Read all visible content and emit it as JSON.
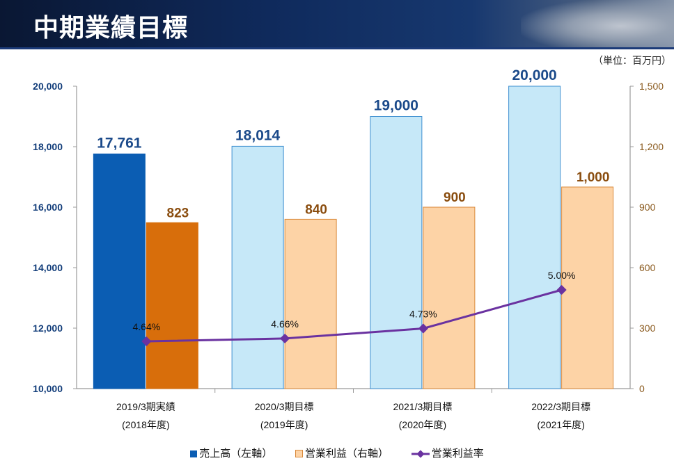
{
  "header": {
    "title": "中期業績目標"
  },
  "unit_label": "（単位：百万円）",
  "legend": {
    "sales": "売上高（左軸）",
    "profit": "営業利益（右軸）",
    "margin": "営業利益率"
  },
  "colors": {
    "sales_actual": "#0b5db3",
    "sales_target": "#c6e8f8",
    "sales_target_stroke": "#3e8fd0",
    "profit_actual": "#d86e0b",
    "profit_target": "#fdd3a6",
    "profit_target_stroke": "#d98a3c",
    "margin_line": "#6a32a0",
    "left_axis_text": "#123d7a",
    "right_axis_text": "#8a5a1e",
    "sales_label": "#1b4a8a",
    "profit_label": "#8a4d0f"
  },
  "chart_data": {
    "type": "bar",
    "categories": [
      [
        "2019/3期実績",
        "(2018年度)"
      ],
      [
        "2020/3期目標",
        "(2019年度)"
      ],
      [
        "2021/3期目標",
        "(2020年度)"
      ],
      [
        "2022/3期目標",
        "(2021年度)"
      ]
    ],
    "left_axis": {
      "ticks": [
        "10,000",
        "12,000",
        "14,000",
        "16,000",
        "18,000",
        "20,000"
      ],
      "ylim": [
        10000,
        20000
      ]
    },
    "right_axis": {
      "ticks": [
        "0",
        "300",
        "600",
        "900",
        "1,200",
        "1,500"
      ],
      "ylim": [
        0,
        1500
      ]
    },
    "series": [
      {
        "name": "売上高（左軸）",
        "axis": "left",
        "values": [
          17761,
          18014,
          19000,
          20000
        ],
        "labels": [
          "17,761",
          "18,014",
          "19,000",
          "20,000"
        ]
      },
      {
        "name": "営業利益（右軸）",
        "axis": "right",
        "values": [
          823,
          840,
          900,
          1000
        ],
        "labels": [
          "823",
          "840",
          "900",
          "1,000"
        ]
      },
      {
        "name": "営業利益率",
        "type": "line",
        "values": [
          4.64,
          4.66,
          4.73,
          5.0
        ],
        "labels": [
          "4.64%",
          "4.66%",
          "4.73%",
          "5.00%"
        ]
      }
    ],
    "legend_position": "bottom",
    "grid": false
  }
}
